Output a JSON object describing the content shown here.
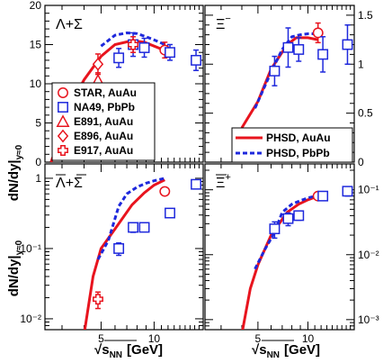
{
  "chart_data": {
    "type": "scatter",
    "y_axis_label": "dN/dy|",
    "y_axis_sub": "y≈0",
    "x_axis_label": "√s",
    "x_axis_sub": "NN",
    "x_axis_unit": "[GeV]",
    "x_ticks": [
      "5",
      "10"
    ],
    "x_log": true,
    "x_range": [
      2.4,
      19.0
    ],
    "colors": {
      "red": "#e8141e",
      "blue": "#1e28dc"
    },
    "legend_data": [
      {
        "label": "STAR, AuAu",
        "marker": "circle",
        "color": "red"
      },
      {
        "label": "NA49, PbPb",
        "marker": "square",
        "color": "blue"
      },
      {
        "label": "E891, AuAu",
        "marker": "triangle",
        "color": "red"
      },
      {
        "label": "E896, AuAu",
        "marker": "diamond",
        "color": "red"
      },
      {
        "label": "E917, AuAu",
        "marker": "cross",
        "color": "red"
      }
    ],
    "legend_model": [
      {
        "label": "PHSD, AuAu",
        "style": "solid",
        "color": "red"
      },
      {
        "label": "PHSD, PbPb",
        "style": "dashed",
        "color": "blue"
      }
    ],
    "panels": [
      {
        "id": "lambda_sigma",
        "label_main": "Λ+Σ",
        "label_overline": false,
        "ylog": false,
        "ylim": [
          0,
          20
        ],
        "y_ticks": [
          "0",
          "5",
          "10",
          "15",
          "20"
        ],
        "tick_side": "left",
        "phsd_auau": {
          "x": [
            2.6,
            2.8,
            3.2,
            4.0,
            5.0,
            6.0,
            7.5,
            8.8,
            10.0,
            11.4
          ],
          "y": [
            0.0,
            2.0,
            6.5,
            10.5,
            13.5,
            15.0,
            15.5,
            15.3,
            14.8,
            14.3
          ]
        },
        "phsd_pbpb": {
          "x": [
            5.0,
            6.0,
            7.0,
            8.0,
            9.0,
            10.0,
            11.0,
            12.0
          ],
          "y": [
            14.8,
            16.2,
            16.5,
            16.4,
            16.0,
            15.6,
            15.2,
            14.8
          ]
        },
        "series": [
          {
            "name": "STAR, AuAu",
            "marker": "circle",
            "color": "red",
            "x": [
              11.5
            ],
            "y": [
              14.3
            ],
            "err": [
              1.0
            ]
          },
          {
            "name": "NA49, PbPb",
            "marker": "square",
            "color": "blue",
            "x": [
              6.3,
              7.6,
              8.8,
              12.3,
              17.3
            ],
            "y": [
              13.3,
              15.0,
              14.6,
              14.0,
              13.0
            ],
            "err": [
              1.2,
              1.5,
              1.2,
              1.0,
              1.3
            ]
          },
          {
            "name": "E891, AuAu",
            "marker": "triangle",
            "color": "red",
            "x": [
              4.8
            ],
            "y": [
              10.4
            ],
            "err": [
              1.0
            ]
          },
          {
            "name": "E896, AuAu",
            "marker": "diamond",
            "color": "red",
            "x": [
              4.8
            ],
            "y": [
              12.5
            ],
            "err": [
              1.3
            ]
          },
          {
            "name": "E917, AuAu",
            "marker": "cross",
            "color": "red",
            "x": [
              7.6
            ],
            "y": [
              15.0
            ],
            "err": [
              1.0
            ]
          }
        ]
      },
      {
        "id": "xi_minus",
        "label_main": "Ξ",
        "label_sup": "−",
        "label_overline": false,
        "ylog": false,
        "ylim": [
          0,
          1.6
        ],
        "y_ticks": [
          "0",
          "0.5",
          "1",
          "1.5"
        ],
        "y_tick_values": [
          0,
          0.5,
          1.0,
          1.5
        ],
        "tick_side": "right",
        "phsd_auau": {
          "x": [
            4.0,
            5.0,
            6.0,
            7.5,
            8.5,
            10.0,
            11.5
          ],
          "y": [
            0.35,
            0.62,
            0.95,
            1.2,
            1.27,
            1.27,
            1.25
          ]
        },
        "phsd_pbpb": {
          "x": [
            4.8,
            6.0,
            7.0,
            8.0,
            9.0,
            10.0,
            11.0,
            12.5
          ],
          "y": [
            0.55,
            0.92,
            1.15,
            1.28,
            1.3,
            1.31,
            1.31,
            1.32
          ]
        },
        "series": [
          {
            "name": "STAR, AuAu",
            "marker": "circle",
            "color": "red",
            "x": [
              11.5
            ],
            "y": [
              1.32
            ],
            "err": [
              0.1
            ]
          },
          {
            "name": "NA49, PbPb",
            "marker": "square",
            "color": "blue",
            "x": [
              6.3,
              7.6,
              8.8,
              12.3,
              17.3
            ],
            "y": [
              0.93,
              1.17,
              1.15,
              1.1,
              1.2
            ],
            "err": [
              0.15,
              0.2,
              0.12,
              0.18,
              0.2
            ]
          }
        ]
      },
      {
        "id": "antilambda",
        "label_main": "Λ+Σ",
        "label_overline": true,
        "ylog": true,
        "ylim": [
          0.007,
          1.6
        ],
        "y_ticks": [
          "10⁻²",
          "10⁻¹",
          "1"
        ],
        "y_tick_values": [
          0.01,
          0.1,
          1
        ],
        "tick_side": "left",
        "phsd_auau": {
          "x": [
            4.0,
            4.5,
            5.0,
            6.0,
            7.5,
            8.8,
            10.0,
            11.5
          ],
          "y": [
            0.006,
            0.04,
            0.1,
            0.19,
            0.42,
            0.62,
            0.8,
            0.95
          ]
        },
        "phsd_pbpb": {
          "x": [
            4.8,
            5.5,
            6.3,
            7.0,
            8.0,
            9.0,
            10.0,
            11.5
          ],
          "y": [
            0.07,
            0.13,
            0.4,
            0.6,
            0.75,
            0.85,
            0.92,
            1.0
          ]
        },
        "series": [
          {
            "name": "STAR, AuAu",
            "marker": "circle",
            "color": "red",
            "x": [
              11.5
            ],
            "y": [
              0.65
            ],
            "err": [
              0.06
            ]
          },
          {
            "name": "NA49, PbPb",
            "marker": "square",
            "color": "blue",
            "x": [
              6.3,
              7.6,
              8.8,
              12.3,
              17.3
            ],
            "y": [
              0.1,
              0.2,
              0.2,
              0.32,
              0.82
            ],
            "err": [
              0.02,
              0.03,
              0.02,
              0.03,
              0.06
            ]
          },
          {
            "name": "E917, AuAu",
            "marker": "cross",
            "color": "red",
            "x": [
              4.8
            ],
            "y": [
              0.019
            ],
            "err": [
              0.005
            ]
          }
        ]
      },
      {
        "id": "antixi",
        "label_main": "Ξ",
        "label_sup": "+",
        "label_overline": true,
        "ylog": true,
        "ylim": [
          0.0007,
          0.25
        ],
        "y_ticks": [
          "10⁻³",
          "10⁻²",
          "10⁻¹"
        ],
        "y_tick_values": [
          0.001,
          0.01,
          0.1
        ],
        "tick_side": "right",
        "phsd_auau": {
          "x": [
            4.0,
            4.5,
            5.0,
            6.0,
            7.5,
            8.8,
            10.0,
            11.5
          ],
          "y": [
            0.0006,
            0.003,
            0.007,
            0.02,
            0.045,
            0.06,
            0.07,
            0.08
          ]
        },
        "phsd_pbpb": {
          "x": [
            4.8,
            5.5,
            6.3,
            7.0,
            8.0,
            9.0,
            10.0,
            11.5,
            12.5
          ],
          "y": [
            0.006,
            0.012,
            0.022,
            0.045,
            0.06,
            0.068,
            0.075,
            0.082,
            0.086
          ]
        },
        "series": [
          {
            "name": "STAR, AuAu",
            "marker": "circle",
            "color": "red",
            "x": [
              11.5
            ],
            "y": [
              0.08
            ],
            "err": [
              0.008
            ]
          },
          {
            "name": "NA49, PbPb",
            "marker": "square",
            "color": "blue",
            "x": [
              6.3,
              7.6,
              8.8,
              12.3,
              17.3
            ],
            "y": [
              0.025,
              0.036,
              0.04,
              0.08,
              0.095
            ],
            "err": [
              0.007,
              0.008,
              0.006,
              0.01,
              0.015
            ]
          }
        ]
      }
    ]
  }
}
